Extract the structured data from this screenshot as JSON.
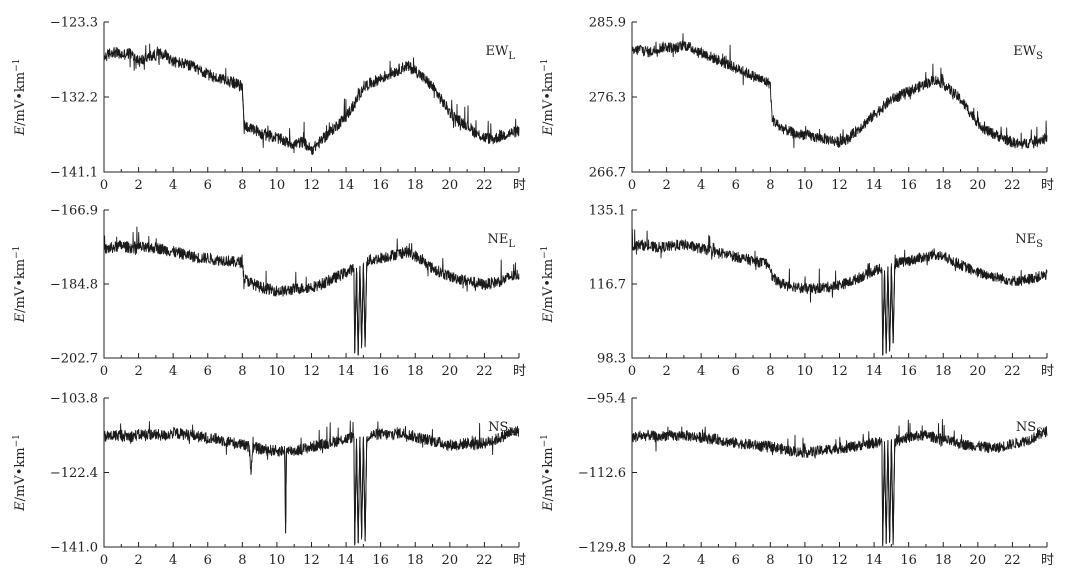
{
  "chart_data": [
    {
      "type": "line",
      "label_main": "EW",
      "label_sub": "L",
      "ylabel_italic": "E",
      "ylabel_rest": "/mV•km",
      "ylabel_sup": "−1",
      "ylim": [
        -141.1,
        -123.3
      ],
      "yticks": [
        "−123.3",
        "−132.2",
        "−141.1"
      ],
      "xlim": [
        0,
        24
      ],
      "xticks": [
        "0",
        "2",
        "4",
        "6",
        "8",
        "10",
        "12",
        "14",
        "16",
        "18",
        "20",
        "22"
      ],
      "xunit": "时",
      "series": [
        {
          "x": [
            0,
            0.5,
            1,
            1.5,
            2,
            2.5,
            3,
            3.5,
            4,
            4.5,
            5,
            5.5,
            6,
            6.5,
            7,
            7.5,
            8,
            8.1,
            8.5,
            9,
            9.5,
            10,
            10.5,
            11,
            11.5,
            12,
            12.5,
            13,
            13.5,
            14,
            14.5,
            15,
            15.5,
            16,
            16.5,
            17,
            17.5,
            18,
            18.5,
            19,
            19.5,
            20,
            20.5,
            21,
            21.5,
            22,
            22.5,
            23,
            23.5,
            24
          ],
          "y": [
            -127.5,
            -126.8,
            -127.2,
            -127,
            -128,
            -127.5,
            -127.2,
            -127,
            -128,
            -128.2,
            -128.5,
            -129,
            -129.5,
            -130,
            -130,
            -130.5,
            -131,
            -135.5,
            -136,
            -136.5,
            -136.8,
            -137,
            -137.5,
            -137.8,
            -137.5,
            -138.5,
            -137.5,
            -136.5,
            -135.5,
            -134.5,
            -133,
            -131,
            -130.5,
            -130,
            -129.5,
            -129,
            -128.5,
            -129,
            -130,
            -131,
            -132.5,
            -134,
            -135,
            -135.5,
            -136.5,
            -137,
            -137.2,
            -136.8,
            -136.5,
            -136.2
          ]
        }
      ]
    },
    {
      "type": "line",
      "label_main": "EW",
      "label_sub": "S",
      "ylabel_italic": "E",
      "ylabel_rest": "/mV•km",
      "ylabel_sup": "−1",
      "ylim": [
        266.7,
        285.9
      ],
      "yticks": [
        "285.9",
        "276.3",
        "266.7"
      ],
      "xlim": [
        0,
        24
      ],
      "xticks": [
        "0",
        "2",
        "4",
        "6",
        "8",
        "10",
        "12",
        "14",
        "16",
        "18",
        "20",
        "22"
      ],
      "xunit": "时",
      "series": [
        {
          "x": [
            0,
            0.5,
            1,
            1.5,
            2,
            2.5,
            3,
            3.5,
            4,
            4.5,
            5,
            5.5,
            6,
            6.5,
            7,
            7.5,
            8,
            8.1,
            8.5,
            9,
            9.5,
            10,
            10.5,
            11,
            11.5,
            12,
            12.5,
            13,
            13.5,
            14,
            14.5,
            15,
            15.5,
            16,
            16.5,
            17,
            17.5,
            18,
            18.5,
            19,
            19.5,
            20,
            20.5,
            21,
            21.5,
            22,
            22.5,
            23,
            23.5,
            24
          ],
          "y": [
            282,
            282.5,
            282,
            282.5,
            282.8,
            282.5,
            283,
            282.5,
            282,
            281.5,
            281,
            280.5,
            280,
            279.5,
            279,
            278.5,
            278,
            273.5,
            272.5,
            272,
            271.5,
            271.5,
            271.2,
            271,
            270.8,
            270.5,
            271,
            272,
            273,
            274,
            275,
            276,
            276.5,
            277,
            277.5,
            278,
            278.5,
            278,
            277,
            276,
            274.5,
            273,
            272,
            271.5,
            271,
            270.5,
            270.2,
            270.5,
            270.8,
            271
          ]
        }
      ]
    },
    {
      "type": "line",
      "label_main": "NE",
      "label_sub": "L",
      "ylabel_italic": "E",
      "ylabel_rest": "/mV•km",
      "ylabel_sup": "−1",
      "ylim": [
        -202.7,
        -166.9
      ],
      "yticks": [
        "−166.9",
        "−184.8",
        "−202.7"
      ],
      "xlim": [
        0,
        24
      ],
      "xticks": [
        "0",
        "2",
        "4",
        "6",
        "8",
        "10",
        "12",
        "14",
        "16",
        "18",
        "20",
        "22"
      ],
      "xunit": "时",
      "series": [
        {
          "x": [
            0,
            0.5,
            1,
            1.5,
            2,
            2.5,
            3,
            3.5,
            4,
            4.5,
            5,
            5.5,
            6,
            6.5,
            7,
            7.5,
            8,
            8.1,
            8.5,
            9,
            9.5,
            10,
            10.5,
            11,
            11.5,
            12,
            12.5,
            13,
            13.5,
            14,
            14.45,
            14.5,
            14.6,
            14.7,
            14.8,
            14.9,
            15,
            15.1,
            15.2,
            15.3,
            15.5,
            16,
            16.5,
            17,
            17.5,
            18,
            18.5,
            19,
            19.5,
            20,
            20.5,
            21,
            21.5,
            22,
            22.5,
            23,
            23.5,
            24
          ],
          "y": [
            -176.5,
            -176,
            -175.5,
            -176,
            -175.8,
            -176.2,
            -176,
            -176.5,
            -177,
            -177.5,
            -178,
            -178.5,
            -178.5,
            -179,
            -179,
            -179.5,
            -179.5,
            -183.5,
            -184.5,
            -185.5,
            -186,
            -186.5,
            -186.5,
            -186,
            -185.8,
            -185.5,
            -185,
            -184,
            -183,
            -182,
            -181,
            -201.5,
            -181,
            -202,
            -180.5,
            -199.5,
            -180,
            -200,
            -179.5,
            -179,
            -179,
            -178.5,
            -178,
            -177.5,
            -177,
            -178,
            -179.5,
            -181,
            -182,
            -183,
            -183.5,
            -184,
            -184.5,
            -185,
            -184.5,
            -184,
            -183,
            -182.5
          ]
        }
      ]
    },
    {
      "type": "line",
      "label_main": "NE",
      "label_sub": "S",
      "ylabel_italic": "E",
      "ylabel_rest": "/mV•km",
      "ylabel_sup": "−1",
      "ylim": [
        98.3,
        135.1
      ],
      "yticks": [
        "135.1",
        "116.7",
        "98.3"
      ],
      "xlim": [
        0,
        24
      ],
      "xticks": [
        "0",
        "2",
        "4",
        "6",
        "8",
        "10",
        "12",
        "14",
        "16",
        "18",
        "20",
        "22"
      ],
      "xunit": "时",
      "series": [
        {
          "x": [
            0,
            0.5,
            1,
            1.5,
            2,
            2.5,
            3,
            3.5,
            4,
            4.5,
            5,
            5.5,
            6,
            6.5,
            7,
            7.5,
            8,
            8.1,
            8.5,
            9,
            9.5,
            10,
            10.5,
            11,
            11.5,
            12,
            12.5,
            13,
            13.5,
            14,
            14.45,
            14.5,
            14.6,
            14.7,
            14.8,
            14.9,
            15,
            15.1,
            15.2,
            15.3,
            15.5,
            16,
            16.5,
            17,
            17.5,
            18,
            18.5,
            19,
            19.5,
            20,
            20.5,
            21,
            21.5,
            22,
            22.5,
            23,
            23.5,
            24
          ],
          "y": [
            126,
            126.5,
            126,
            125.8,
            126,
            126.2,
            126.5,
            126,
            125.5,
            125,
            124.5,
            124,
            123.5,
            123,
            122.5,
            122,
            121.5,
            118.5,
            117,
            116.5,
            116,
            115.5,
            115.5,
            115.8,
            116,
            116.5,
            117,
            118,
            119,
            120,
            120.5,
            99,
            120,
            99.5,
            121,
            100,
            121,
            102,
            121.5,
            122,
            122,
            122.5,
            123,
            123.5,
            124,
            123.5,
            122.5,
            121.5,
            120.5,
            119.5,
            119,
            118.5,
            118,
            117.5,
            117.5,
            118,
            118.5,
            119
          ]
        }
      ]
    },
    {
      "type": "line",
      "label_main": "NS",
      "label_sub": "L",
      "ylabel_italic": "E",
      "ylabel_rest": "/mV•km",
      "ylabel_sup": "−1",
      "ylim": [
        -141.0,
        -103.8
      ],
      "yticks": [
        "−103.8",
        "−122.4",
        "−141.0"
      ],
      "xlim": [
        0,
        24
      ],
      "xticks": [
        "0",
        "2",
        "4",
        "6",
        "8",
        "10",
        "12",
        "14",
        "16",
        "18",
        "20",
        "22"
      ],
      "xunit": "时",
      "series": [
        {
          "x": [
            0,
            0.5,
            1,
            1.5,
            2,
            2.5,
            3,
            3.5,
            4,
            4.5,
            5,
            5.5,
            6,
            6.5,
            7,
            7.5,
            8,
            8.4,
            8.5,
            8.6,
            9,
            9.5,
            10,
            10.45,
            10.5,
            10.55,
            11,
            11.5,
            12,
            12.5,
            13,
            13.5,
            14,
            14.45,
            14.5,
            14.6,
            14.7,
            14.8,
            14.9,
            15,
            15.1,
            15.2,
            15.3,
            15.5,
            16,
            16.5,
            17,
            17.5,
            18,
            18.5,
            19,
            19.5,
            20,
            20.5,
            21,
            21.5,
            22,
            22.5,
            23,
            23.5,
            24
          ],
          "y": [
            -113.5,
            -113.2,
            -113,
            -113.4,
            -113,
            -112.8,
            -113,
            -113.2,
            -112.5,
            -112.8,
            -113,
            -113.5,
            -113.8,
            -114,
            -114.5,
            -115,
            -115.5,
            -116,
            -122,
            -116,
            -116.5,
            -116.8,
            -117,
            -117,
            -137.5,
            -117,
            -117,
            -116.5,
            -116,
            -115.5,
            -115,
            -114.5,
            -114,
            -113.5,
            -140.5,
            -114,
            -140,
            -113.5,
            -138.5,
            -113.5,
            -139.5,
            -113.5,
            -113.5,
            -113,
            -112.8,
            -113,
            -112.5,
            -112.8,
            -113.5,
            -114,
            -114.5,
            -115,
            -115.5,
            -115.5,
            -115,
            -115.5,
            -115,
            -114.5,
            -113.5,
            -112.5,
            -112
          ]
        }
      ]
    },
    {
      "type": "line",
      "label_main": "NS",
      "label_sub": "S",
      "ylabel_italic": "E",
      "ylabel_rest": "/mV•km",
      "ylabel_sup": "−1",
      "ylim": [
        -129.8,
        -95.4
      ],
      "yticks": [
        "−95.4",
        "−112.6",
        "−129.8"
      ],
      "xlim": [
        0,
        24
      ],
      "xticks": [
        "0",
        "2",
        "4",
        "6",
        "8",
        "10",
        "12",
        "14",
        "16",
        "18",
        "20",
        "22"
      ],
      "xunit": "时",
      "series": [
        {
          "x": [
            0,
            0.5,
            1,
            1.5,
            2,
            2.5,
            3,
            3.5,
            4,
            4.5,
            5,
            5.5,
            6,
            6.5,
            7,
            7.5,
            8,
            8.5,
            9,
            9.5,
            10,
            10.5,
            11,
            11.5,
            12,
            12.5,
            13,
            13.5,
            14,
            14.45,
            14.5,
            14.6,
            14.7,
            14.8,
            14.9,
            15,
            15.1,
            15.2,
            15.3,
            15.5,
            16,
            16.5,
            17,
            17.5,
            18,
            18.5,
            19,
            19.5,
            20,
            20.5,
            21,
            21.5,
            22,
            22.5,
            23,
            23.5,
            24
          ],
          "y": [
            -104.5,
            -104.2,
            -104,
            -104.5,
            -104,
            -104.2,
            -104,
            -104.3,
            -104.5,
            -104.8,
            -105,
            -105.5,
            -105.8,
            -106,
            -106.2,
            -106.5,
            -106.5,
            -107,
            -107.5,
            -107.8,
            -108,
            -107.8,
            -107.5,
            -107.2,
            -107,
            -106.8,
            -106.5,
            -106,
            -105.8,
            -105.5,
            -129.5,
            -105.5,
            -129,
            -105.2,
            -128.5,
            -105,
            -129.3,
            -105,
            -105,
            -104.8,
            -104.5,
            -104.2,
            -104,
            -104.5,
            -105,
            -105.5,
            -106,
            -106.3,
            -106.5,
            -106.8,
            -107,
            -106.5,
            -106,
            -105.5,
            -105,
            -104,
            -103
          ]
        }
      ]
    }
  ]
}
